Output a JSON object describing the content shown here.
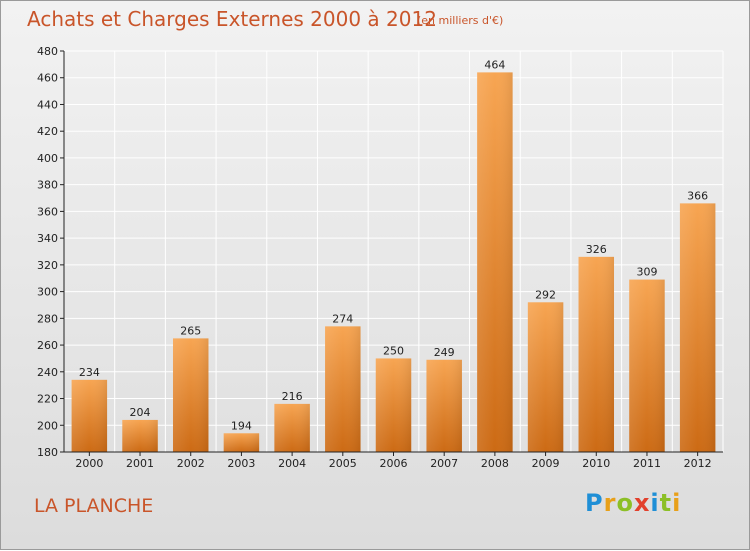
{
  "header": {
    "title": "Achats et Charges Externes 2000 à 2012",
    "subtitle": "(en milliers d'€)"
  },
  "commune": "LA PLANCHE",
  "logo": {
    "text": "Proxiti",
    "letters": [
      {
        "char": "P",
        "color": "#1f8fd6"
      },
      {
        "char": "r",
        "color": "#e8a019"
      },
      {
        "char": "o",
        "color": "#8cbf26"
      },
      {
        "char": "x",
        "color": "#e2402c"
      },
      {
        "char": "i",
        "color": "#1f8fd6"
      },
      {
        "char": "t",
        "color": "#8cbf26"
      },
      {
        "char": "i",
        "color": "#e8a019"
      }
    ]
  },
  "colors": {
    "title": "#c9552a",
    "bar_light": "#f7a552",
    "bar_dark": "#cc6a14",
    "grid": "#ffffff",
    "axis": "#222222"
  },
  "chart_data": {
    "type": "bar",
    "title": "Achats et Charges Externes 2000 à 2012",
    "subtitle": "(en milliers d'€)",
    "xlabel": "",
    "ylabel": "",
    "categories": [
      "2000",
      "2001",
      "2002",
      "2003",
      "2004",
      "2005",
      "2006",
      "2007",
      "2008",
      "2009",
      "2010",
      "2011",
      "2012"
    ],
    "values": [
      234,
      204,
      265,
      194,
      216,
      274,
      250,
      249,
      464,
      292,
      326,
      309,
      366
    ],
    "ylim": [
      180,
      480
    ],
    "yticks": [
      180,
      200,
      220,
      240,
      260,
      280,
      300,
      320,
      340,
      360,
      380,
      400,
      420,
      440,
      460,
      480
    ],
    "grid": true,
    "data_labels": true
  }
}
